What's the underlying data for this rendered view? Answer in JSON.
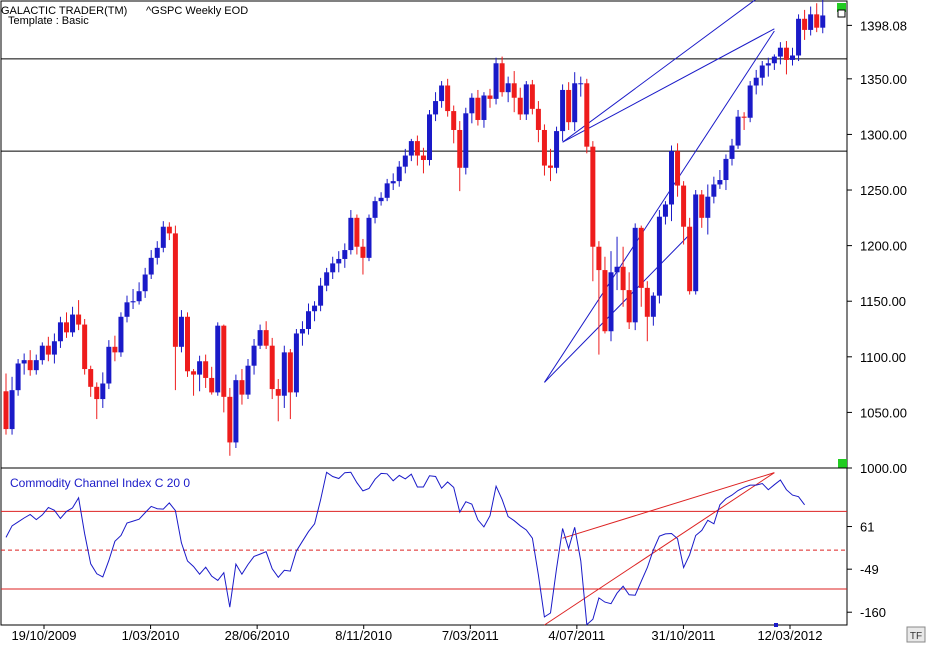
{
  "header": {
    "app_title": "GALACTIC TRADER(TM)",
    "symbol": "^GSPC Weekly EOD",
    "template": "Template : Basic"
  },
  "indicator": {
    "label": "Commodity Channel Index C 20 0"
  },
  "badge": "TF",
  "colors": {
    "up": "#1a1ac8",
    "down": "#ee1c1c",
    "cci": "#1a1ac8",
    "cci_level": "#dd2222",
    "trend": "#1a1ac8",
    "marker": "#22cc22",
    "hline": "#000000"
  },
  "chart_data": [
    {
      "type": "candlestick",
      "x_tick_labels": [
        "19/10/2009",
        "1/03/2010",
        "28/06/2010",
        "8/11/2010",
        "7/03/2011",
        "4/07/2011",
        "31/10/2011",
        "12/03/2012"
      ],
      "y_tick_labels": [
        "1398.08",
        "1350.00",
        "1300.00",
        "1250.00",
        "1200.00",
        "1150.00",
        "1100.00",
        "1050.00",
        "1000.00"
      ],
      "ylim": [
        1000,
        1420
      ],
      "horizontal_lines": [
        1368,
        1285
      ],
      "trendlines": [
        {
          "from": [
            89,
            1077
          ],
          "to": [
            113,
            1210
          ],
          "color": "trend"
        },
        {
          "from": [
            89,
            1077
          ],
          "to": [
            127,
            1393
          ],
          "color": "trend"
        },
        {
          "from": [
            92,
            1293
          ],
          "to": [
            127,
            1395
          ],
          "color": "trend"
        },
        {
          "from": [
            92,
            1293
          ],
          "to": [
            136,
            1470
          ],
          "color": "trend"
        }
      ],
      "candles": [
        [
          1069,
          1035,
          1085,
          1030
        ],
        [
          1035,
          1070,
          1082,
          1030
        ],
        [
          1070,
          1094,
          1098,
          1065
        ],
        [
          1094,
          1097,
          1103,
          1084
        ],
        [
          1097,
          1088,
          1106,
          1083
        ],
        [
          1088,
          1097,
          1102,
          1084
        ],
        [
          1097,
          1110,
          1113,
          1093
        ],
        [
          1110,
          1102,
          1118,
          1096
        ],
        [
          1102,
          1114,
          1121,
          1094
        ],
        [
          1114,
          1131,
          1136,
          1108
        ],
        [
          1131,
          1122,
          1140,
          1117
        ],
        [
          1122,
          1138,
          1145,
          1118
        ],
        [
          1138,
          1129,
          1151,
          1124
        ],
        [
          1129,
          1089,
          1134,
          1084
        ],
        [
          1089,
          1073,
          1092,
          1064
        ],
        [
          1073,
          1062,
          1077,
          1044
        ],
        [
          1062,
          1076,
          1086,
          1054
        ],
        [
          1076,
          1109,
          1115,
          1071
        ],
        [
          1109,
          1104,
          1119,
          1096
        ],
        [
          1104,
          1136,
          1140,
          1100
        ],
        [
          1136,
          1149,
          1155,
          1131
        ],
        [
          1149,
          1150,
          1161,
          1143
        ],
        [
          1150,
          1159,
          1167,
          1147
        ],
        [
          1159,
          1174,
          1180,
          1153
        ],
        [
          1174,
          1189,
          1196,
          1170
        ],
        [
          1189,
          1198,
          1204,
          1183
        ],
        [
          1198,
          1217,
          1222,
          1194
        ],
        [
          1217,
          1211,
          1221,
          1205
        ],
        [
          1211,
          1109,
          1218,
          1070
        ],
        [
          1109,
          1136,
          1142,
          1104
        ],
        [
          1136,
          1087,
          1140,
          1082
        ],
        [
          1087,
          1084,
          1089,
          1065
        ],
        [
          1084,
          1096,
          1101,
          1069
        ],
        [
          1096,
          1081,
          1102,
          1072
        ],
        [
          1081,
          1068,
          1091,
          1066
        ],
        [
          1068,
          1128,
          1131,
          1065
        ],
        [
          1128,
          1064,
          1129,
          1050
        ],
        [
          1064,
          1023,
          1072,
          1011
        ],
        [
          1023,
          1079,
          1084,
          1018
        ],
        [
          1079,
          1066,
          1089,
          1057
        ],
        [
          1066,
          1092,
          1098,
          1062
        ],
        [
          1092,
          1110,
          1116,
          1084
        ],
        [
          1110,
          1124,
          1129,
          1107
        ],
        [
          1124,
          1110,
          1132,
          1107
        ],
        [
          1110,
          1071,
          1117,
          1062
        ],
        [
          1071,
          1065,
          1080,
          1042
        ],
        [
          1065,
          1104,
          1110,
          1054
        ],
        [
          1104,
          1068,
          1107,
          1044
        ],
        [
          1068,
          1121,
          1125,
          1064
        ],
        [
          1121,
          1125,
          1132,
          1110
        ],
        [
          1125,
          1141,
          1148,
          1120
        ],
        [
          1141,
          1146,
          1150,
          1132
        ],
        [
          1146,
          1164,
          1171,
          1141
        ],
        [
          1164,
          1176,
          1180,
          1159
        ],
        [
          1176,
          1184,
          1190,
          1170
        ],
        [
          1184,
          1188,
          1195,
          1176
        ],
        [
          1188,
          1196,
          1202,
          1180
        ],
        [
          1196,
          1225,
          1232,
          1192
        ],
        [
          1225,
          1199,
          1228,
          1192
        ],
        [
          1199,
          1189,
          1206,
          1174
        ],
        [
          1189,
          1225,
          1228,
          1186
        ],
        [
          1225,
          1240,
          1244,
          1220
        ],
        [
          1240,
          1243,
          1248,
          1236
        ],
        [
          1243,
          1256,
          1260,
          1240
        ],
        [
          1256,
          1258,
          1265,
          1250
        ],
        [
          1258,
          1271,
          1276,
          1253
        ],
        [
          1271,
          1281,
          1287,
          1265
        ],
        [
          1281,
          1294,
          1296,
          1276
        ],
        [
          1294,
          1281,
          1299,
          1272
        ],
        [
          1281,
          1277,
          1288,
          1265
        ],
        [
          1277,
          1318,
          1322,
          1272
        ],
        [
          1318,
          1330,
          1338,
          1312
        ],
        [
          1330,
          1344,
          1348,
          1324
        ],
        [
          1344,
          1321,
          1350,
          1316
        ],
        [
          1321,
          1304,
          1326,
          1292
        ],
        [
          1304,
          1270,
          1312,
          1249
        ],
        [
          1270,
          1319,
          1324,
          1264
        ],
        [
          1319,
          1333,
          1337,
          1310
        ],
        [
          1333,
          1313,
          1340,
          1308
        ],
        [
          1313,
          1335,
          1338,
          1306
        ],
        [
          1335,
          1332,
          1341,
          1324
        ],
        [
          1332,
          1364,
          1369,
          1327
        ],
        [
          1364,
          1338,
          1370,
          1334
        ],
        [
          1338,
          1346,
          1352,
          1329
        ],
        [
          1346,
          1333,
          1357,
          1320
        ],
        [
          1333,
          1318,
          1342,
          1313
        ],
        [
          1318,
          1345,
          1348,
          1313
        ],
        [
          1345,
          1323,
          1349,
          1318
        ],
        [
          1323,
          1304,
          1330,
          1293
        ],
        [
          1304,
          1272,
          1309,
          1263
        ],
        [
          1272,
          1270,
          1287,
          1258
        ],
        [
          1270,
          1303,
          1307,
          1265
        ],
        [
          1303,
          1340,
          1345,
          1294
        ],
        [
          1340,
          1311,
          1347,
          1304
        ],
        [
          1311,
          1346,
          1356,
          1303
        ],
        [
          1346,
          1346,
          1352,
          1334
        ],
        [
          1346,
          1289,
          1350,
          1283
        ],
        [
          1289,
          1199,
          1294,
          1168
        ],
        [
          1199,
          1178,
          1204,
          1102
        ],
        [
          1178,
          1123,
          1190,
          1121
        ],
        [
          1123,
          1176,
          1195,
          1114
        ],
        [
          1176,
          1181,
          1208,
          1160
        ],
        [
          1181,
          1160,
          1199,
          1145
        ],
        [
          1160,
          1131,
          1176,
          1125
        ],
        [
          1131,
          1216,
          1220,
          1124
        ],
        [
          1216,
          1162,
          1218,
          1145
        ],
        [
          1162,
          1136,
          1168,
          1114
        ],
        [
          1136,
          1155,
          1158,
          1128
        ],
        [
          1155,
          1226,
          1232,
          1148
        ],
        [
          1226,
          1237,
          1240,
          1219
        ],
        [
          1237,
          1285,
          1290,
          1222
        ],
        [
          1285,
          1254,
          1292,
          1244
        ],
        [
          1254,
          1217,
          1258,
          1201
        ],
        [
          1217,
          1159,
          1225,
          1156
        ],
        [
          1159,
          1246,
          1250,
          1156
        ],
        [
          1246,
          1225,
          1250,
          1216
        ],
        [
          1225,
          1244,
          1255,
          1210
        ],
        [
          1244,
          1255,
          1262,
          1238
        ],
        [
          1255,
          1259,
          1268,
          1251
        ],
        [
          1259,
          1278,
          1282,
          1250
        ],
        [
          1278,
          1290,
          1296,
          1272
        ],
        [
          1290,
          1316,
          1322,
          1287
        ],
        [
          1316,
          1315,
          1320,
          1304
        ],
        [
          1315,
          1344,
          1348,
          1311
        ],
        [
          1344,
          1351,
          1358,
          1336
        ],
        [
          1351,
          1362,
          1366,
          1344
        ],
        [
          1362,
          1364,
          1369,
          1352
        ],
        [
          1364,
          1370,
          1372,
          1358
        ],
        [
          1370,
          1378,
          1383,
          1363
        ],
        [
          1378,
          1367,
          1384,
          1354
        ],
        [
          1367,
          1371,
          1378,
          1362
        ],
        [
          1371,
          1404,
          1408,
          1366
        ],
        [
          1404,
          1394,
          1412,
          1385
        ],
        [
          1394,
          1408,
          1415,
          1389
        ],
        [
          1408,
          1396,
          1418,
          1392
        ],
        [
          1396,
          1407,
          1422,
          1391
        ]
      ]
    },
    {
      "type": "line",
      "series_label": "Commodity Channel Index C 20 0",
      "y_tick_labels": [
        "61",
        "-49",
        "-160"
      ],
      "ylim": [
        -193,
        212
      ],
      "horizontal_lines": [
        100,
        0,
        -100
      ],
      "trendlines": [
        {
          "from": [
            89,
            -193
          ],
          "to": [
            127,
            200
          ],
          "color": "cci_level"
        },
        {
          "from": [
            92,
            31
          ],
          "to": [
            127,
            200
          ],
          "color": "cci_level"
        }
      ],
      "values": [
        33,
        63,
        73,
        83,
        92,
        79,
        91,
        110,
        103,
        82,
        100,
        109,
        135,
        43,
        -35,
        -61,
        -69,
        -27,
        23,
        38,
        70,
        75,
        80,
        97,
        113,
        107,
        106,
        122,
        102,
        19,
        -28,
        -42,
        -62,
        -44,
        -67,
        -78,
        -58,
        -147,
        -36,
        -62,
        -37,
        -16,
        -10,
        -4,
        -48,
        -70,
        -52,
        -54,
        -2,
        23,
        48,
        68,
        130,
        201,
        190,
        185,
        200,
        201,
        174,
        153,
        159,
        183,
        198,
        197,
        179,
        193,
        184,
        196,
        163,
        163,
        192,
        190,
        160,
        176,
        162,
        98,
        125,
        119,
        78,
        60,
        89,
        165,
        131,
        87,
        76,
        63,
        52,
        31,
        -64,
        -172,
        -162,
        -48,
        56,
        4,
        59,
        -28,
        -192,
        -178,
        -123,
        -134,
        -138,
        -111,
        -93,
        -115,
        -116,
        -80,
        -45,
        1,
        36,
        42,
        43,
        30,
        -45,
        -12,
        38,
        51,
        77,
        68,
        117,
        133,
        142,
        154,
        162,
        168,
        168,
        172,
        156,
        169,
        181,
        156,
        142,
        138,
        117
      ]
    }
  ]
}
